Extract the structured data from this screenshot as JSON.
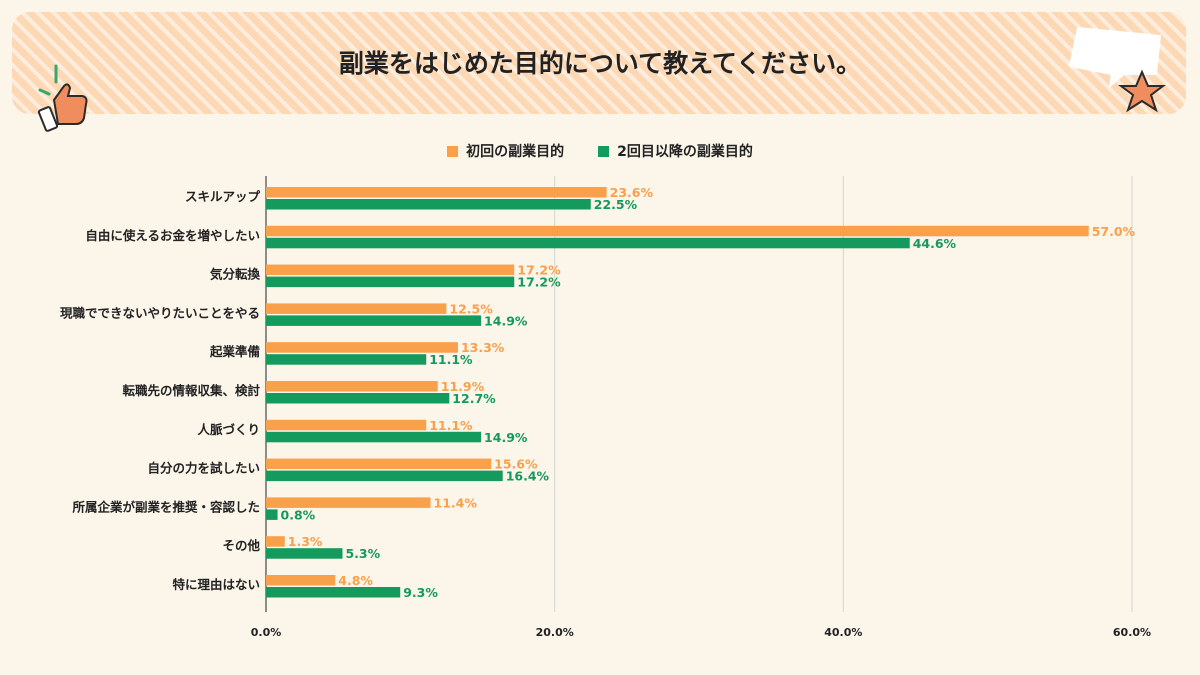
{
  "title": "副業をはじめた目的について教えてください。",
  "colors": {
    "series1": "#f9a04b",
    "series2": "#149a5c",
    "grid": "#cfd8cf",
    "axis": "#222222"
  },
  "chart_data": {
    "type": "bar",
    "orientation": "horizontal",
    "categories": [
      "スキルアップ",
      "自由に使えるお金を増やしたい",
      "気分転換",
      "現職でできないやりたいことをやる",
      "起業準備",
      "転職先の情報収集、検討",
      "人脈づくり",
      "自分の力を試したい",
      "所属企業が副業を推奨・容認した",
      "その他",
      "特に理由はない"
    ],
    "series": [
      {
        "name": "初回の副業目的",
        "values": [
          23.6,
          57.0,
          17.2,
          12.5,
          13.3,
          11.9,
          11.1,
          15.6,
          11.4,
          1.3,
          4.8
        ],
        "labels": [
          "23.6%",
          "57.0%",
          "17.2%",
          "12.5%",
          "13.3%",
          "11.9%",
          "11.1%",
          "15.6%",
          "11.4%",
          "1.3%",
          "4.8%"
        ]
      },
      {
        "name": "2回目以降の副業目的",
        "values": [
          22.5,
          44.6,
          17.2,
          14.9,
          11.1,
          12.7,
          14.9,
          16.4,
          0.8,
          5.3,
          9.3
        ],
        "labels": [
          "22.5%",
          "44.6%",
          "17.2%",
          "14.9%",
          "11.1%",
          "12.7%",
          "14.9%",
          "16.4%",
          "0.8%",
          "5.3%",
          "9.3%"
        ]
      }
    ],
    "xlim": [
      0,
      60
    ],
    "xticks": [
      0,
      20,
      40,
      60
    ],
    "xtick_labels": [
      "0.0%",
      "20.0%",
      "40.0%",
      "60.0%"
    ],
    "grid": true,
    "legend_position": "top-center"
  }
}
